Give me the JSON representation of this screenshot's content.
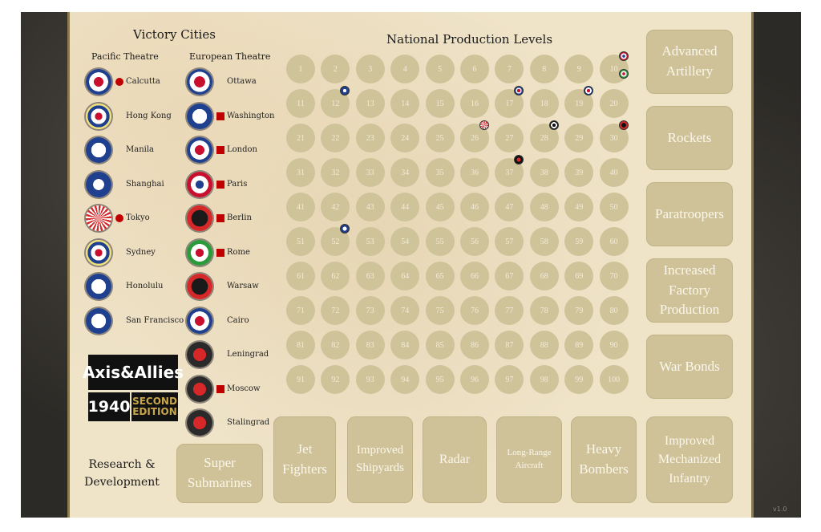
{
  "victory_cities": {
    "title": "Victory Cities",
    "pacific_title": "Pacific Theatre",
    "european_title": "European Theatre",
    "pacific": [
      {
        "name": "Calcutta",
        "roundel": "uk-roundel",
        "capital": true
      },
      {
        "name": "Hong Kong",
        "roundel": "anzac-roundel",
        "capital": false
      },
      {
        "name": "Manila",
        "roundel": "usa-roundel",
        "capital": false
      },
      {
        "name": "Shanghai",
        "roundel": "china-roundel",
        "capital": false
      },
      {
        "name": "Tokyo",
        "roundel": "japan-roundel",
        "capital": true
      },
      {
        "name": "Sydney",
        "roundel": "anzac-roundel",
        "capital": false
      },
      {
        "name": "Honolulu",
        "roundel": "usa-roundel",
        "capital": false
      },
      {
        "name": "San Francisco",
        "roundel": "usa-roundel",
        "capital": false
      }
    ],
    "european": [
      {
        "name": "Ottawa",
        "roundel": "canada-roundel",
        "capital": false
      },
      {
        "name": "Washington",
        "roundel": "usa-roundel",
        "capital": true
      },
      {
        "name": "London",
        "roundel": "uk-roundel",
        "capital": true
      },
      {
        "name": "Paris",
        "roundel": "france-roundel",
        "capital": true
      },
      {
        "name": "Berlin",
        "roundel": "germany-roundel",
        "capital": true
      },
      {
        "name": "Rome",
        "roundel": "italy-roundel",
        "capital": true
      },
      {
        "name": "Warsaw",
        "roundel": "germany-roundel",
        "capital": false
      },
      {
        "name": "Cairo",
        "roundel": "uk-roundel",
        "capital": false
      },
      {
        "name": "Leningrad",
        "roundel": "ussr-roundel",
        "capital": false
      },
      {
        "name": "Moscow",
        "roundel": "ussr-roundel",
        "capital": true
      },
      {
        "name": "Stalingrad",
        "roundel": "ussr-roundel",
        "capital": false
      }
    ]
  },
  "production": {
    "title": "National Production Levels",
    "levels": [
      1,
      2,
      3,
      4,
      5,
      6,
      7,
      8,
      9,
      10,
      11,
      12,
      13,
      14,
      15,
      16,
      17,
      18,
      19,
      20,
      21,
      22,
      23,
      24,
      25,
      26,
      27,
      28,
      29,
      30,
      31,
      32,
      33,
      34,
      35,
      36,
      37,
      38,
      39,
      40,
      41,
      42,
      43,
      44,
      45,
      46,
      47,
      48,
      49,
      50,
      51,
      52,
      53,
      54,
      55,
      56,
      57,
      58,
      59,
      60,
      61,
      62,
      63,
      64,
      65,
      66,
      67,
      68,
      69,
      70,
      71,
      72,
      73,
      74,
      75,
      76,
      77,
      78,
      79,
      80,
      81,
      82,
      83,
      84,
      85,
      86,
      87,
      88,
      89,
      90,
      91,
      92,
      93,
      94,
      95,
      96,
      97,
      98,
      99,
      100
    ],
    "markers": [
      {
        "nation": "france",
        "level": 10
      },
      {
        "nation": "italy",
        "level": 10
      },
      {
        "nation": "china",
        "level": 12
      },
      {
        "nation": "uk",
        "level": 17
      },
      {
        "nation": "uk-europe",
        "level": 19
      },
      {
        "nation": "japan",
        "level": 26
      },
      {
        "nation": "anzac",
        "level": 28
      },
      {
        "nation": "germany",
        "level": 30
      },
      {
        "nation": "ussr",
        "level": 37
      },
      {
        "nation": "usa",
        "level": 52
      }
    ]
  },
  "research": {
    "title": "Research & Development",
    "techs": [
      "Advanced Artillery",
      "Rockets",
      "Paratroopers",
      "Increased Factory Production",
      "War Bonds",
      "Super Submarines",
      "Jet Fighters",
      "Improved Shipyards",
      "Radar",
      "Long-Range Aircraft",
      "Heavy Bombers",
      "Improved Mechanized Infantry"
    ]
  },
  "logo": {
    "line1": "Axis&Allies",
    "year": "1940",
    "edition": "SECOND EDITION"
  },
  "version": "v1.0",
  "colors": {
    "board": "#efe3c8",
    "cell": "#cfc39a",
    "tech": "#cfc299",
    "capital": "#c00000"
  }
}
